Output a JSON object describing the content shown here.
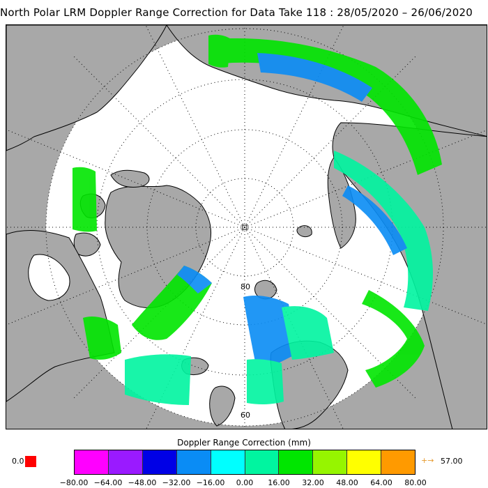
{
  "title": "North Polar LRM Doppler Range Correction for Data Take 118 : 28/05/2020 – 26/06/2020",
  "map": {
    "lat_labels": [
      "80",
      "60"
    ],
    "land_color": "#a8a8a8",
    "ocean_color": "#ffffff"
  },
  "colorbar": {
    "title": "Doppler Range Correction (mm)",
    "ticks": [
      "−80.00",
      "−64.00",
      "−48.00",
      "−32.00",
      "−16.00",
      "0.00",
      "16.00",
      "32.00",
      "48.00",
      "64.00",
      "80.00"
    ],
    "colors": [
      "#ff00ff",
      "#9a1aff",
      "#0000e6",
      "#0a8cf5",
      "#00ffff",
      "#00f5a0",
      "#00e600",
      "#96f500",
      "#ffff00",
      "#ff9a00"
    ],
    "under_value": "0.0",
    "under_color": "#ff0000",
    "over_arrow": "+→",
    "over_value": "57.00",
    "over_color": "#e69a2e"
  }
}
